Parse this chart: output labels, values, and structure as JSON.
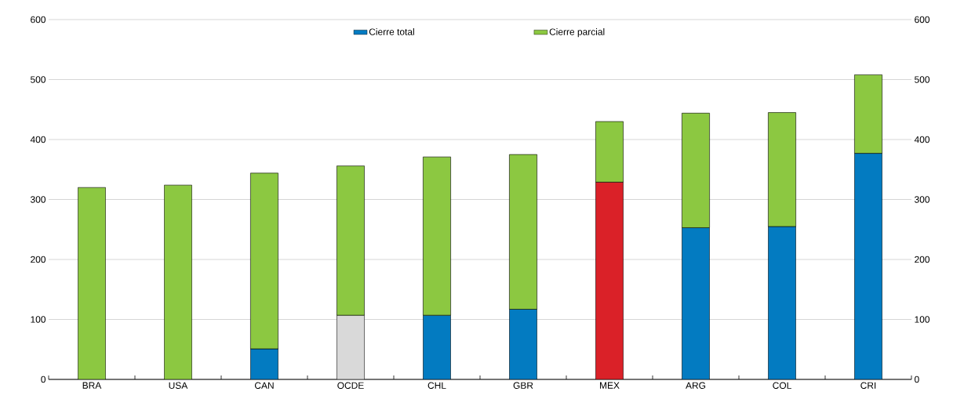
{
  "chart_data": {
    "type": "bar",
    "stacked": true,
    "categories": [
      "BRA",
      "USA",
      "CAN",
      "OCDE",
      "CHL",
      "GBR",
      "MEX",
      "ARG",
      "COL",
      "CRI"
    ],
    "series": [
      {
        "name": "Cierre total",
        "color": "#037bc1",
        "colors": [
          "#037bc1",
          "#037bc1",
          "#037bc1",
          "#d9d9d9",
          "#037bc1",
          "#037bc1",
          "#da2128",
          "#037bc1",
          "#037bc1",
          "#037bc1"
        ],
        "values": [
          0,
          0,
          51,
          107,
          107,
          117,
          329,
          253,
          255,
          377
        ]
      },
      {
        "name": "Cierre parcial",
        "color": "#8cc841",
        "values": [
          320,
          324,
          293,
          249,
          264,
          258,
          101,
          191,
          190,
          131
        ]
      }
    ],
    "ylim": [
      0,
      600
    ],
    "yticks": [
      0,
      100,
      200,
      300,
      400,
      500,
      600
    ],
    "y2lim": [
      0,
      600
    ],
    "y2ticks": [
      0,
      100,
      200,
      300,
      400,
      500,
      600
    ],
    "grid": "y",
    "legend": "top"
  }
}
